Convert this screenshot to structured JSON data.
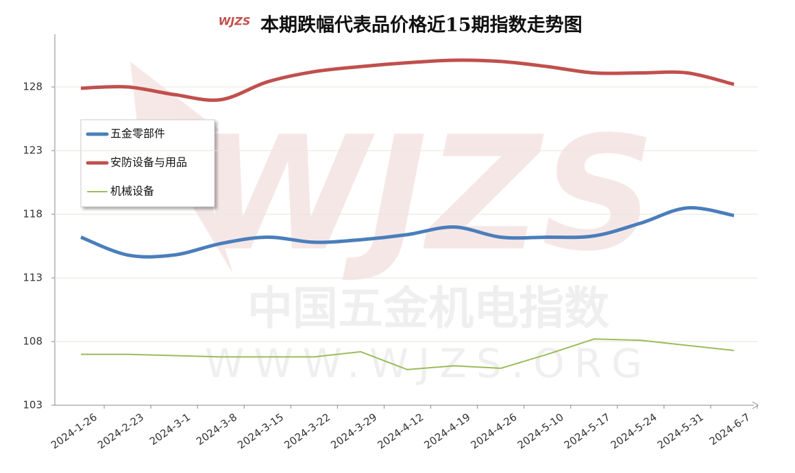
{
  "chart_data": {
    "type": "line",
    "title": "本期跌幅代表品价格近15期指数走势图",
    "logo": "WJZS",
    "watermark": [
      "中国五金机电指数",
      "WWW.WJZS.ORG"
    ],
    "categories": [
      "2024-1-26",
      "2024-2-23",
      "2024-3-1",
      "2024-3-8",
      "2024-3-15",
      "2024-3-22",
      "2024-3-29",
      "2024-4-12",
      "2024-4-19",
      "2024-4-26",
      "2024-5-10",
      "2024-5-17",
      "2024-5-24",
      "2024-5-31",
      "2024-6-7"
    ],
    "series": [
      {
        "name": "五金零部件",
        "color": "#4a7ebb",
        "width": 5,
        "smooth": true,
        "values": [
          116.2,
          114.8,
          114.8,
          115.7,
          116.2,
          115.8,
          116.0,
          116.4,
          117.0,
          116.2,
          116.2,
          116.3,
          117.3,
          118.5,
          117.9
        ]
      },
      {
        "name": "安防设备与用品",
        "color": "#c0504d",
        "width": 5,
        "smooth": true,
        "values": [
          127.9,
          128.0,
          127.4,
          127.0,
          128.4,
          129.2,
          129.6,
          129.9,
          130.1,
          130.0,
          129.6,
          129.1,
          129.1,
          129.1,
          128.2
        ]
      },
      {
        "name": "机械设备",
        "color": "#9bbb59",
        "width": 2,
        "smooth": false,
        "values": [
          107.0,
          107.0,
          106.9,
          106.8,
          106.8,
          106.8,
          107.2,
          105.8,
          106.1,
          105.9,
          107.0,
          108.2,
          108.1,
          107.7,
          107.3
        ]
      }
    ],
    "ylim": [
      103,
      132
    ],
    "yticks": [
      103,
      108,
      113,
      118,
      123,
      128
    ],
    "grid": true
  }
}
